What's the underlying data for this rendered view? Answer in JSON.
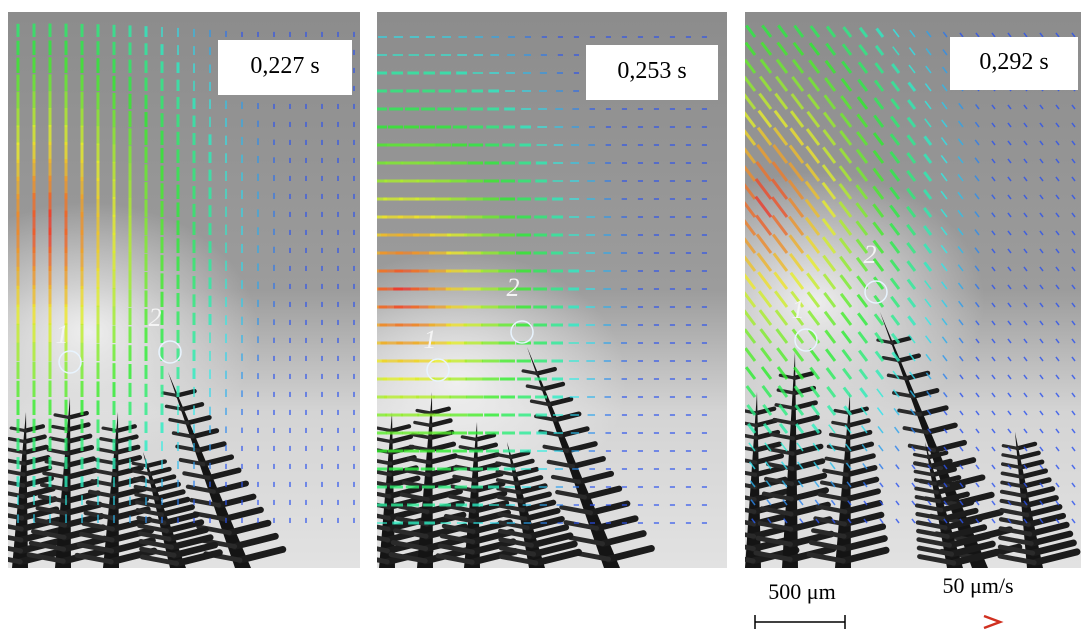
{
  "panels": [
    {
      "time": "0,227 s",
      "markers": [
        "1",
        "2"
      ]
    },
    {
      "time": "0,253 s",
      "markers": [
        "1",
        "2"
      ]
    },
    {
      "time": "0,292 s",
      "markers": [
        "1",
        "2"
      ]
    }
  ],
  "scale_bar": {
    "label": "500 μm"
  },
  "velocity_scale": {
    "label": "50 μm/s"
  }
}
